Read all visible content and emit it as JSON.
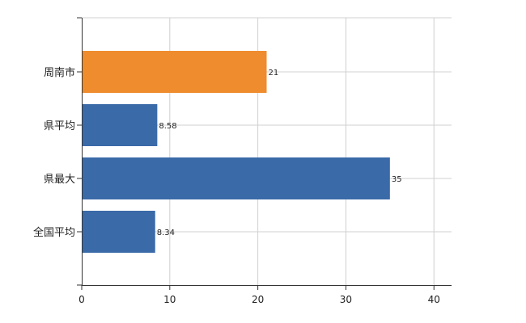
{
  "chart_data": {
    "type": "bar",
    "orientation": "horizontal",
    "categories": [
      "周南市",
      "県平均",
      "県最大",
      "全国平均"
    ],
    "values": [
      21,
      8.58,
      35,
      8.34
    ],
    "data_labels": [
      "21",
      "8.58",
      "35",
      "8.34"
    ],
    "highlight_index": 0,
    "colors": {
      "default": "#3a6aa8",
      "highlight": "#ef8c2e",
      "grid": "#d0d0d0",
      "axis": "#333333"
    },
    "xlim": [
      0,
      42
    ],
    "xticks": [
      0,
      10,
      20,
      30,
      40
    ],
    "grid": true,
    "title": "",
    "xlabel": "",
    "ylabel": ""
  }
}
